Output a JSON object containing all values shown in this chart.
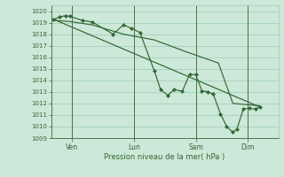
{
  "background_color": "#cce8d8",
  "grid_color": "#99ccbb",
  "line_color": "#336633",
  "marker_color": "#336633",
  "xlabel_text": "Pression niveau de la mer( hPa )",
  "ylim": [
    1009,
    1020.5
  ],
  "yticks": [
    1009,
    1010,
    1011,
    1012,
    1013,
    1014,
    1015,
    1016,
    1017,
    1018,
    1019,
    1020
  ],
  "xtick_labels": [
    "Ven",
    "Lun",
    "Sam",
    "Dim"
  ],
  "xtick_positions": [
    1,
    4,
    7,
    9.5
  ],
  "xlim": [
    0,
    11
  ],
  "series1_x": [
    0.1,
    0.4,
    0.7,
    0.9,
    1.5,
    2.0,
    3.0,
    3.5,
    3.9,
    4.3,
    5.0,
    5.3,
    5.65,
    5.95,
    6.35,
    6.7,
    7.0,
    7.3,
    7.6,
    7.85,
    8.2,
    8.5,
    8.8,
    9.0,
    9.3,
    9.6,
    9.9,
    10.1
  ],
  "series1_y": [
    1019.25,
    1019.5,
    1019.6,
    1019.55,
    1019.2,
    1019.05,
    1018.0,
    1018.8,
    1018.5,
    1018.15,
    1014.8,
    1013.2,
    1012.7,
    1013.2,
    1013.05,
    1014.5,
    1014.5,
    1013.1,
    1013.0,
    1012.8,
    1011.1,
    1010.0,
    1009.5,
    1009.8,
    1011.5,
    1011.6,
    1011.5,
    1011.7
  ],
  "series2_x": [
    0.1,
    0.9,
    2.0,
    3.5,
    5.0,
    6.5,
    8.1,
    8.8,
    10.1
  ],
  "series2_y": [
    1019.2,
    1019.1,
    1018.8,
    1018.0,
    1017.5,
    1016.5,
    1015.5,
    1012.0,
    1011.8
  ],
  "series3_x": [
    0.1,
    10.1
  ],
  "series3_y": [
    1019.3,
    1011.7
  ]
}
